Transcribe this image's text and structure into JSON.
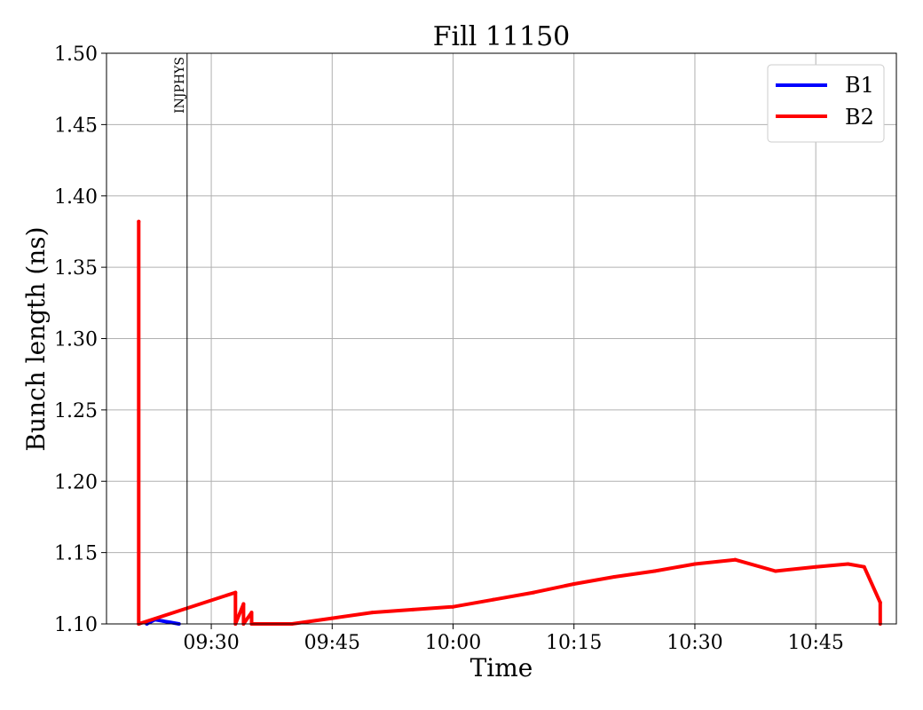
{
  "chart_data": {
    "type": "line",
    "title": "Fill 11150",
    "xlabel": "Time",
    "ylabel": "Bunch length (ns)",
    "xlim": [
      "09:17",
      "10:55"
    ],
    "ylim": [
      1.1,
      1.5
    ],
    "x_ticks": [
      "09:30",
      "09:45",
      "10:00",
      "10:15",
      "10:30",
      "10:45"
    ],
    "y_ticks": [
      "1.10",
      "1.15",
      "1.20",
      "1.25",
      "1.30",
      "1.35",
      "1.40",
      "1.45",
      "1.50"
    ],
    "grid": true,
    "legend_position": "top-right",
    "annotations": [
      {
        "text": "INJPHYS",
        "x": "09:27"
      }
    ],
    "series": [
      {
        "name": "B1",
        "color": "#0000ff",
        "x": [
          "09:22",
          "09:23",
          "09:24",
          "09:25",
          "09:26"
        ],
        "y": [
          1.1,
          1.103,
          1.102,
          1.101,
          1.1
        ]
      },
      {
        "name": "B2",
        "color": "#ff0000",
        "x": [
          "09:21",
          "09:21",
          "09:21",
          "09:33",
          "09:33",
          "09:34",
          "09:34",
          "09:35",
          "09:35",
          "09:40",
          "09:45",
          "09:50",
          "09:55",
          "10:00",
          "10:05",
          "10:10",
          "10:15",
          "10:20",
          "10:25",
          "10:30",
          "10:35",
          "10:40",
          "10:45",
          "10:49",
          "10:51",
          "10:53",
          "10:53"
        ],
        "y": [
          1.1,
          1.382,
          1.1,
          1.122,
          1.1,
          1.114,
          1.1,
          1.108,
          1.1,
          1.1,
          1.104,
          1.108,
          1.11,
          1.112,
          1.117,
          1.122,
          1.128,
          1.133,
          1.137,
          1.142,
          1.145,
          1.137,
          1.14,
          1.142,
          1.14,
          1.115,
          1.1
        ]
      }
    ]
  }
}
